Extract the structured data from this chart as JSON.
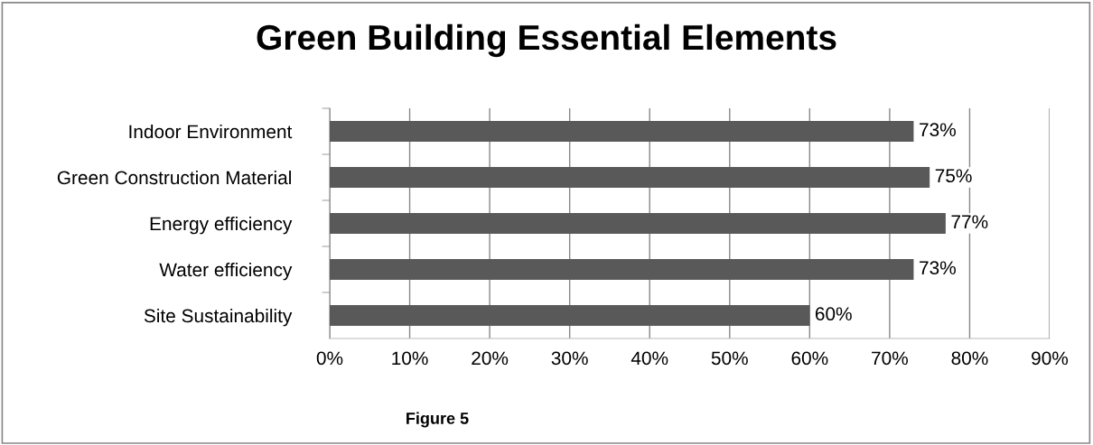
{
  "chart_data": {
    "type": "bar",
    "orientation": "horizontal",
    "title": "Green Building Essential Elements",
    "categories": [
      "Indoor Environment",
      "Green Construction Material",
      "Energy efficiency",
      "Water efficiency",
      "Site Sustainability"
    ],
    "values": [
      73,
      75,
      77,
      73,
      60
    ],
    "value_labels": [
      "73%",
      "75%",
      "77%",
      "73%",
      "60%"
    ],
    "color": "#595959",
    "xlim": [
      0,
      90
    ],
    "xticks": [
      {
        "value": 0,
        "label": "0%"
      },
      {
        "value": 10,
        "label": "10%"
      },
      {
        "value": 20,
        "label": "20%"
      },
      {
        "value": 30,
        "label": "30%"
      },
      {
        "value": 40,
        "label": "40%"
      },
      {
        "value": 50,
        "label": "50%"
      },
      {
        "value": 60,
        "label": "60%"
      },
      {
        "value": 70,
        "label": "70%"
      },
      {
        "value": 80,
        "label": "80%"
      },
      {
        "value": 90,
        "label": "90%"
      }
    ],
    "grid": "x",
    "annotations": [
      "Figure 5"
    ]
  }
}
